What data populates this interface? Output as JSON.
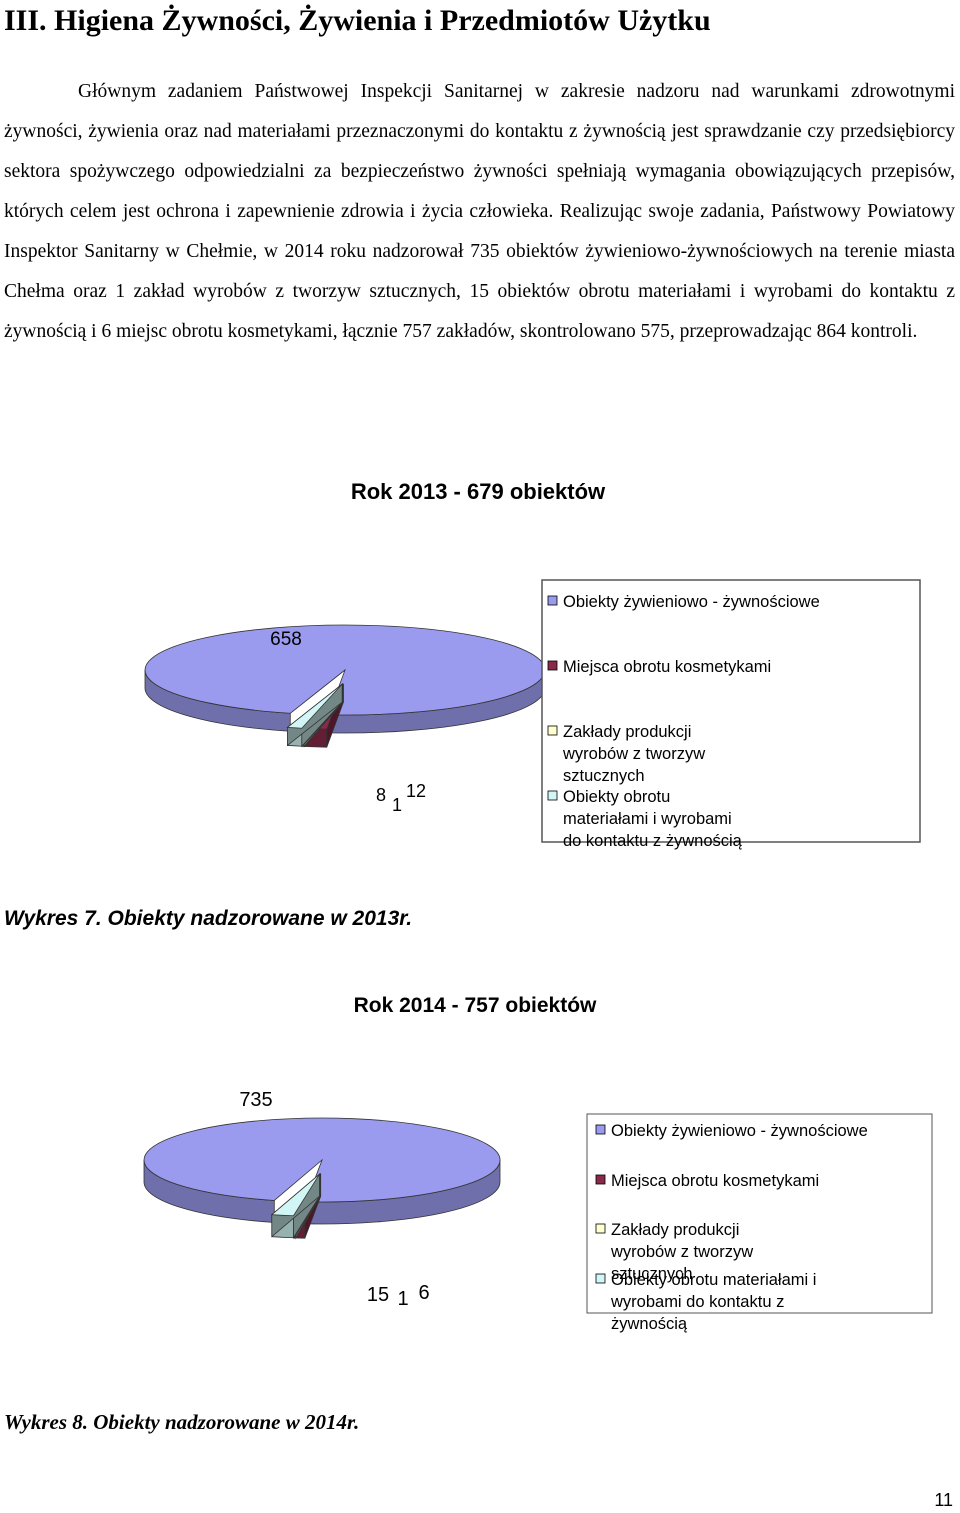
{
  "heading": "III. Higiena Żywności, Żywienia i Przedmiotów Użytku",
  "paragraph": "Głównym zadaniem Państwowej Inspekcji Sanitarnej w zakresie nadzoru nad warunkami zdrowotnymi żywności, żywienia oraz nad materiałami przeznaczonymi do kontaktu z żywnością jest sprawdzanie czy przedsiębiorcy sektora spożywczego odpowiedzialni za bezpieczeństwo żywności spełniają wymagania obowiązujących przepisów, których celem jest ochrona i zapewnienie zdrowia i życia człowieka. Realizując swoje zadania, Państwowy Powiatowy Inspektor Sanitarny w Chełmie, w 2014 roku nadzorował 735 obiektów żywieniowo-żywnościowych na terenie miasta Chełma oraz 1 zakład wyrobów z tworzyw sztucznych, 15 obiektów obrotu materiałami i wyrobami do kontaktu z żywnością i 6 miejsc obrotu kosmetykami, łącznie 757 zakładów, skontrolowano 575, przeprowadzając 864 kontroli.",
  "caption_2013": "Wykres 7. Obiekty nadzorowane w 2013r.",
  "caption_2014": "Wykres 8. Obiekty nadzorowane w 2014r.",
  "page_number": "11",
  "chart_data": [
    {
      "type": "pie",
      "style": "3d-exploded",
      "title": "Rok 2013 - 679 obiektów",
      "legend_position": "right",
      "slices": [
        {
          "label": "Obiekty żywieniowo - żywnościowe",
          "value": 658,
          "color": "#9a9aee"
        },
        {
          "label": "Miejsca obrotu kosmetykami",
          "value": 12,
          "color": "#8a2a4a"
        },
        {
          "label": "Zakłady produkcji wyrobów z tworzyw sztucznych",
          "value": 1,
          "color": "#ffffd0"
        },
        {
          "label": "Obiekty obrotu materiałami i wyrobami do kontaktu z żywnością",
          "value": 8,
          "color": "#d2f6f6"
        }
      ]
    },
    {
      "type": "pie",
      "style": "3d-exploded",
      "title": "Rok 2014 - 757 obiektów",
      "legend_position": "right",
      "slices": [
        {
          "label": "Obiekty żywieniowo - żywnościowe",
          "value": 735,
          "color": "#9a9aee"
        },
        {
          "label": "Miejsca obrotu kosmetykami",
          "value": 6,
          "color": "#8a2a4a"
        },
        {
          "label": "Zakłady produkcji wyrobów z tworzyw sztucznych",
          "value": 1,
          "color": "#ffffd0"
        },
        {
          "label": "Obiekty obrotu materiałami i wyrobami do kontaktu z żywnością",
          "value": 15,
          "color": "#d2f6f6"
        }
      ]
    }
  ]
}
